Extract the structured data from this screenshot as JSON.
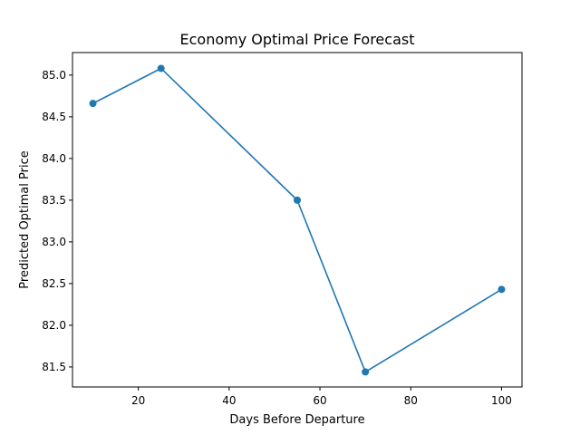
{
  "chart_data": {
    "type": "line",
    "title": "Economy Optimal Price Forecast",
    "xlabel": "Days Before Departure",
    "ylabel": "Predicted Optimal Price",
    "xlim": [
      5.5,
      104.5
    ],
    "ylim": [
      81.26,
      85.27
    ],
    "xticks": [
      20,
      40,
      60,
      80,
      100
    ],
    "yticks": [
      81.5,
      82.0,
      82.5,
      83.0,
      83.5,
      84.0,
      84.5,
      85.0
    ],
    "ytick_labels": [
      "81.5",
      "82.0",
      "82.5",
      "83.0",
      "83.5",
      "84.0",
      "84.5",
      "85.0"
    ],
    "grid": false,
    "series": [
      {
        "x": [
          10,
          25,
          55,
          70,
          100
        ],
        "y": [
          84.66,
          85.08,
          83.5,
          81.44,
          82.43
        ],
        "color": "#1f77b4",
        "marker": "circle"
      }
    ]
  }
}
